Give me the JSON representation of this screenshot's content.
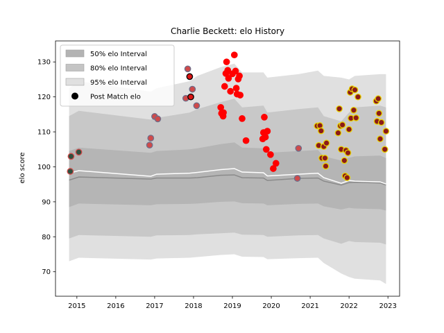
{
  "chart_data": {
    "type": "scatter",
    "title": "Charlie Beckett: elo History",
    "xlabel": "",
    "ylabel": "elo score",
    "xlim": [
      2014.45,
      2023.3
    ],
    "ylim": [
      63,
      136
    ],
    "xticks": [
      2015,
      2016,
      2017,
      2018,
      2019,
      2020,
      2021,
      2022,
      2023
    ],
    "yticks": [
      70,
      80,
      90,
      100,
      110,
      120,
      130
    ],
    "grid": false,
    "legend_position": "top-left",
    "legend": [
      {
        "label": "50% elo Interval",
        "color": "#b3b3b3"
      },
      {
        "label": "80% elo Interval",
        "color": "#c4c4c4"
      },
      {
        "label": "95% elo Interval",
        "color": "#e0e0e0"
      },
      {
        "label": "Post Match elo",
        "color": "#000000"
      }
    ],
    "bands": {
      "x": [
        2014.8,
        2015.05,
        2016.9,
        2017.05,
        2017.9,
        2018.1,
        2018.7,
        2019.05,
        2019.25,
        2019.8,
        2019.9,
        2020.7,
        2021.2,
        2021.35,
        2021.8,
        2022.0,
        2022.15,
        2022.8,
        2022.95
      ],
      "median": [
        96.2,
        97.1,
        96.5,
        96.8,
        96.8,
        96.9,
        97.6,
        97.7,
        96.9,
        96.8,
        96.1,
        96.7,
        96.8,
        95.9,
        94.8,
        95.5,
        95.6,
        95.4,
        94.8
      ],
      "mean": [
        98.2,
        98.9,
        97.3,
        97.9,
        98.2,
        98.4,
        99.2,
        99.5,
        98.5,
        98.3,
        97.4,
        97.9,
        98.2,
        96.9,
        95.3,
        96.1,
        95.9,
        95.7,
        95.1
      ],
      "p50_low": [
        88.5,
        89.5,
        89.0,
        89.3,
        89.4,
        89.5,
        90.0,
        90.1,
        89.6,
        89.5,
        89.0,
        89.4,
        89.5,
        88.7,
        87.8,
        88.3,
        88.1,
        87.9,
        87.5
      ],
      "p50_high": [
        104.5,
        105.5,
        104.0,
        104.5,
        105.0,
        105.3,
        106.5,
        107.0,
        105.5,
        105.3,
        104.0,
        104.5,
        104.8,
        103.0,
        101.8,
        102.6,
        103.0,
        103.2,
        102.5
      ],
      "p80_low": [
        79.5,
        80.5,
        80.0,
        80.4,
        80.5,
        80.7,
        81.0,
        81.2,
        80.6,
        80.5,
        80.0,
        80.4,
        80.5,
        79.5,
        78.0,
        78.8,
        78.5,
        78.3,
        77.8
      ],
      "p80_high": [
        114.5,
        116.0,
        113.5,
        114.0,
        115.5,
        116.5,
        118.5,
        119.5,
        117.0,
        117.5,
        115.5,
        116.5,
        117.0,
        114.5,
        113.0,
        115.5,
        117.0,
        117.5,
        117.0
      ],
      "p95_low": [
        73.0,
        74.0,
        73.5,
        73.8,
        74.0,
        74.2,
        74.8,
        75.0,
        74.3,
        74.2,
        73.6,
        73.9,
        74.0,
        72.5,
        69.5,
        68.5,
        68.0,
        67.5,
        66.5
      ],
      "p95_high": [
        122.5,
        124.5,
        121.5,
        122.5,
        124.5,
        126.0,
        128.5,
        129.5,
        127.0,
        127.0,
        125.5,
        126.5,
        127.5,
        126.0,
        125.5,
        125.0,
        126.0,
        126.5,
        126.5
      ]
    },
    "series": [
      {
        "points": [
          {
            "x": 2014.83,
            "y": 98.7,
            "fill": "#2e4f3e",
            "edge": "#d04a4a"
          },
          {
            "x": 2014.85,
            "y": 103.0,
            "fill": "#2e4f3e",
            "edge": "#d04a4a"
          },
          {
            "x": 2015.05,
            "y": 104.2,
            "fill": "#2e4f3e",
            "edge": "#d04a4a"
          },
          {
            "x": 2016.87,
            "y": 106.2,
            "fill": "#d04a4a",
            "edge": "#6e6e8a"
          },
          {
            "x": 2016.9,
            "y": 108.2,
            "fill": "#d04a4a",
            "edge": "#6e6e8a"
          },
          {
            "x": 2017.0,
            "y": 114.4,
            "fill": "#d04a4a",
            "edge": "#6e6e8a"
          },
          {
            "x": 2017.08,
            "y": 113.7,
            "fill": "#d04a4a",
            "edge": "#6e6e8a"
          },
          {
            "x": 2017.8,
            "y": 119.6,
            "fill": "#d04a4a",
            "edge": "#6e6e8a"
          },
          {
            "x": 2017.85,
            "y": 128.0,
            "fill": "#d04a4a",
            "edge": "#6e6e8a"
          },
          {
            "x": 2017.9,
            "y": 125.8,
            "fill": "#d81414",
            "edge": "#000000"
          },
          {
            "x": 2017.93,
            "y": 120.0,
            "fill": "#d81414",
            "edge": "#000000"
          },
          {
            "x": 2017.97,
            "y": 122.2,
            "fill": "#d04a4a",
            "edge": "#6e6e8a"
          },
          {
            "x": 2018.08,
            "y": 117.5,
            "fill": "#d04a4a",
            "edge": "#6e6e8a"
          },
          {
            "x": 2018.7,
            "y": 117.0,
            "fill": "#ff0000",
            "edge": "#ff0000"
          },
          {
            "x": 2018.72,
            "y": 115.3,
            "fill": "#ff0000",
            "edge": "#ff0000"
          },
          {
            "x": 2018.76,
            "y": 114.5,
            "fill": "#ff0000",
            "edge": "#ff0000"
          },
          {
            "x": 2018.77,
            "y": 115.5,
            "fill": "#ff0000",
            "edge": "#ff0000"
          },
          {
            "x": 2018.8,
            "y": 123.0,
            "fill": "#ff0000",
            "edge": "#ff0000"
          },
          {
            "x": 2018.83,
            "y": 126.7,
            "fill": "#ff0000",
            "edge": "#ff0000"
          },
          {
            "x": 2018.85,
            "y": 130.0,
            "fill": "#ff0000",
            "edge": "#ff0000"
          },
          {
            "x": 2018.88,
            "y": 127.6,
            "fill": "#ff0000",
            "edge": "#ff0000"
          },
          {
            "x": 2018.9,
            "y": 125.3,
            "fill": "#ff0000",
            "edge": "#ff0000"
          },
          {
            "x": 2018.95,
            "y": 121.6,
            "fill": "#ff0000",
            "edge": "#ff0000"
          },
          {
            "x": 2019.0,
            "y": 126.6,
            "fill": "#ff0000",
            "edge": "#ff0000"
          },
          {
            "x": 2019.05,
            "y": 132.0,
            "fill": "#ff0000",
            "edge": "#ff0000"
          },
          {
            "x": 2019.08,
            "y": 127.4,
            "fill": "#ff0000",
            "edge": "#ff0000"
          },
          {
            "x": 2019.1,
            "y": 122.5,
            "fill": "#ff0000",
            "edge": "#ff0000"
          },
          {
            "x": 2019.12,
            "y": 120.8,
            "fill": "#ff0000",
            "edge": "#ff0000"
          },
          {
            "x": 2019.15,
            "y": 125.1,
            "fill": "#ff0000",
            "edge": "#ff0000"
          },
          {
            "x": 2019.18,
            "y": 126.0,
            "fill": "#ff0000",
            "edge": "#ff0000"
          },
          {
            "x": 2019.2,
            "y": 120.5,
            "fill": "#ff0000",
            "edge": "#ff0000"
          },
          {
            "x": 2019.25,
            "y": 113.8,
            "fill": "#ff0000",
            "edge": "#ff0000"
          },
          {
            "x": 2019.35,
            "y": 107.5,
            "fill": "#ff0000",
            "edge": "#ff0000"
          },
          {
            "x": 2019.78,
            "y": 108.0,
            "fill": "#ff0000",
            "edge": "#ff0000"
          },
          {
            "x": 2019.8,
            "y": 109.8,
            "fill": "#ff0000",
            "edge": "#ff0000"
          },
          {
            "x": 2019.82,
            "y": 114.2,
            "fill": "#ff0000",
            "edge": "#ff0000"
          },
          {
            "x": 2019.85,
            "y": 108.5,
            "fill": "#ff0000",
            "edge": "#ff0000"
          },
          {
            "x": 2019.87,
            "y": 105.0,
            "fill": "#ff0000",
            "edge": "#ff0000"
          },
          {
            "x": 2019.9,
            "y": 110.2,
            "fill": "#ff0000",
            "edge": "#ff0000"
          },
          {
            "x": 2019.98,
            "y": 103.5,
            "fill": "#ff0000",
            "edge": "#ff0000"
          },
          {
            "x": 2020.05,
            "y": 99.5,
            "fill": "#ff0000",
            "edge": "#ff0000"
          },
          {
            "x": 2020.12,
            "y": 101.0,
            "fill": "#ff0000",
            "edge": "#ff0000"
          },
          {
            "x": 2020.67,
            "y": 96.7,
            "fill": "#d04a4a",
            "edge": "#6e6e8a"
          },
          {
            "x": 2020.7,
            "y": 105.3,
            "fill": "#d04a4a",
            "edge": "#6e6e8a"
          },
          {
            "x": 2021.18,
            "y": 111.7,
            "fill": "#8b1a1a",
            "edge": "#e8d200"
          },
          {
            "x": 2021.22,
            "y": 106.1,
            "fill": "#8b1a1a",
            "edge": "#e8d200"
          },
          {
            "x": 2021.25,
            "y": 111.8,
            "fill": "#8b1a1a",
            "edge": "#e8d200"
          },
          {
            "x": 2021.28,
            "y": 110.3,
            "fill": "#8b1a1a",
            "edge": "#e8d200"
          },
          {
            "x": 2021.3,
            "y": 102.5,
            "fill": "#8b1a1a",
            "edge": "#e8d200"
          },
          {
            "x": 2021.35,
            "y": 105.8,
            "fill": "#8b1a1a",
            "edge": "#e8d200"
          },
          {
            "x": 2021.38,
            "y": 102.5,
            "fill": "#8b1a1a",
            "edge": "#e8d200"
          },
          {
            "x": 2021.4,
            "y": 100.2,
            "fill": "#8b1a1a",
            "edge": "#e8d200"
          },
          {
            "x": 2021.42,
            "y": 106.8,
            "fill": "#8b1a1a",
            "edge": "#e8d200"
          },
          {
            "x": 2021.72,
            "y": 109.7,
            "fill": "#8b1a1a",
            "edge": "#e8d200"
          },
          {
            "x": 2021.75,
            "y": 116.6,
            "fill": "#8b1a1a",
            "edge": "#e8d200"
          },
          {
            "x": 2021.78,
            "y": 111.7,
            "fill": "#8b1a1a",
            "edge": "#e8d200"
          },
          {
            "x": 2021.8,
            "y": 105.0,
            "fill": "#8b1a1a",
            "edge": "#e8d200"
          },
          {
            "x": 2021.83,
            "y": 112.0,
            "fill": "#8b1a1a",
            "edge": "#e8d200"
          },
          {
            "x": 2021.88,
            "y": 101.8,
            "fill": "#8b1a1a",
            "edge": "#e8d200"
          },
          {
            "x": 2021.9,
            "y": 97.4,
            "fill": "#8b1a1a",
            "edge": "#e8d200"
          },
          {
            "x": 2021.92,
            "y": 104.7,
            "fill": "#8b1a1a",
            "edge": "#e8d200"
          },
          {
            "x": 2021.95,
            "y": 96.9,
            "fill": "#8b1a1a",
            "edge": "#e8d200"
          },
          {
            "x": 2021.97,
            "y": 104.0,
            "fill": "#8b1a1a",
            "edge": "#e8d200"
          },
          {
            "x": 2022.0,
            "y": 110.7,
            "fill": "#8b1a1a",
            "edge": "#e8d200"
          },
          {
            "x": 2022.03,
            "y": 121.3,
            "fill": "#8b1a1a",
            "edge": "#e8d200"
          },
          {
            "x": 2022.05,
            "y": 113.9,
            "fill": "#8b1a1a",
            "edge": "#e8d200"
          },
          {
            "x": 2022.08,
            "y": 122.3,
            "fill": "#8b1a1a",
            "edge": "#e8d200"
          },
          {
            "x": 2022.12,
            "y": 116.2,
            "fill": "#8b1a1a",
            "edge": "#e8d200"
          },
          {
            "x": 2022.15,
            "y": 122.0,
            "fill": "#8b1a1a",
            "edge": "#e8d200"
          },
          {
            "x": 2022.18,
            "y": 114.0,
            "fill": "#8b1a1a",
            "edge": "#e8d200"
          },
          {
            "x": 2022.23,
            "y": 120.0,
            "fill": "#8b1a1a",
            "edge": "#e8d200"
          },
          {
            "x": 2022.7,
            "y": 118.8,
            "fill": "#8b1a1a",
            "edge": "#e8d200"
          },
          {
            "x": 2022.72,
            "y": 113.0,
            "fill": "#8b1a1a",
            "edge": "#e8d200"
          },
          {
            "x": 2022.75,
            "y": 119.5,
            "fill": "#8b1a1a",
            "edge": "#e8d200"
          },
          {
            "x": 2022.77,
            "y": 115.3,
            "fill": "#8b1a1a",
            "edge": "#e8d200"
          },
          {
            "x": 2022.8,
            "y": 108.0,
            "fill": "#8b1a1a",
            "edge": "#e8d200"
          },
          {
            "x": 2022.83,
            "y": 112.7,
            "fill": "#8b1a1a",
            "edge": "#e8d200"
          },
          {
            "x": 2022.92,
            "y": 105.0,
            "fill": "#8b1a1a",
            "edge": "#e8d200"
          },
          {
            "x": 2022.95,
            "y": 110.2,
            "fill": "#8b1a1a",
            "edge": "#e8d200"
          }
        ]
      }
    ],
    "colors": {
      "band95": "#e0e0e0",
      "band80": "#c8c8c8",
      "band50": "#b5b5b5",
      "median": "#8a8a8a",
      "mean": "#ffffff"
    }
  }
}
